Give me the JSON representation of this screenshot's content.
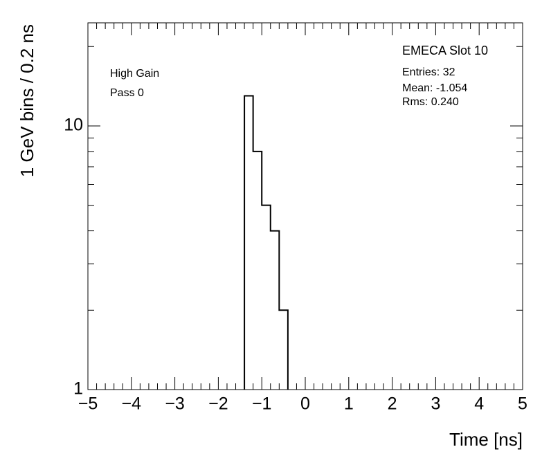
{
  "chart_data": {
    "type": "histogram",
    "legend": {
      "title": "EMECA Slot 10",
      "entries": "Entries: 32",
      "mean": "Mean: -1.054",
      "rms": "Rms: 0.240"
    },
    "annotations": [
      "High Gain",
      "Pass 0"
    ],
    "xlabel": "Time [ns]",
    "ylabel": "1 GeV bins / 0.2 ns",
    "bins": [
      -1.4,
      -1.2,
      -1.0,
      -0.8,
      -0.6,
      -0.4
    ],
    "values": [
      13,
      8,
      5,
      4,
      2
    ],
    "color": "#000000",
    "log_y": true,
    "xlim": [
      -5,
      5
    ],
    "ylim": [
      1,
      24.6
    ],
    "xticks": [
      {
        "value": -5,
        "label": "−5"
      },
      {
        "value": -4,
        "label": "−4"
      },
      {
        "value": -3,
        "label": "−3"
      },
      {
        "value": -2,
        "label": "−2"
      },
      {
        "value": -1,
        "label": "−1"
      },
      0,
      1,
      2,
      3,
      4,
      5
    ],
    "xminorticks": [
      -4.8,
      -4.6,
      -4.4,
      -4.2,
      -3.8,
      -3.6,
      -3.4,
      -3.2,
      -2.8,
      -2.6,
      -2.4,
      -2.2,
      -1.8,
      -1.6,
      -1.4,
      -1.2,
      -0.8,
      -0.6,
      -0.4,
      -0.2,
      0.2,
      0.4,
      0.6,
      0.8,
      1.2,
      1.4,
      1.6,
      1.8,
      2.2,
      2.4,
      2.6,
      2.8,
      3.2,
      3.4,
      3.6,
      3.8,
      4.2,
      4.4,
      4.6,
      4.8
    ],
    "yticks": [
      1,
      10
    ],
    "yminorticks": [
      2,
      3,
      4,
      5,
      6,
      7,
      8,
      9,
      20
    ]
  }
}
